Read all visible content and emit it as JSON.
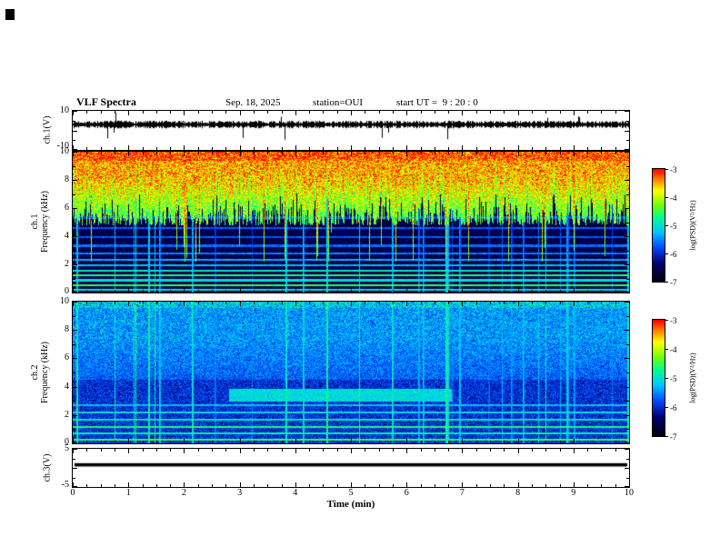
{
  "title": "VLF Spectra",
  "header": {
    "date": "Sep. 18, 2025",
    "station": "station=OUI",
    "start_ut": "start UT =  9 : 20 : 0"
  },
  "axes": {
    "xlabel": "Time (min)",
    "x_ticks": [
      "0",
      "1",
      "2",
      "3",
      "4",
      "5",
      "6",
      "7",
      "8",
      "9",
      "10"
    ],
    "ch1_wave": {
      "ylabel": "ch.1(V)",
      "ymax": "10",
      "ymin": "-10"
    },
    "ch1_spec": {
      "ylabel_line1": "ch.1",
      "ylabel_line2": "Frequency (kHz)",
      "y_ticks": [
        "0",
        "2",
        "4",
        "6",
        "8",
        "10"
      ]
    },
    "ch2_spec": {
      "ylabel_line1": "ch.2",
      "ylabel_line2": "Frequency (kHz)",
      "y_ticks": [
        "0",
        "2",
        "4",
        "6",
        "8",
        "10"
      ]
    },
    "ch3_wave": {
      "ylabel": "ch.3(V)",
      "ymax": "5",
      "ymin": "-5"
    }
  },
  "colorbar": {
    "label": "log(PSD)(V²/Hz)",
    "ticks": [
      "-3",
      "-4",
      "-5",
      "-6",
      "-7"
    ]
  },
  "colormap": [
    [
      0.0,
      "#000010"
    ],
    [
      0.16,
      "#000070"
    ],
    [
      0.3,
      "#0048ff"
    ],
    [
      0.44,
      "#00c8ff"
    ],
    [
      0.57,
      "#00ff90"
    ],
    [
      0.69,
      "#80ff00"
    ],
    [
      0.81,
      "#ffff00"
    ],
    [
      0.91,
      "#ff8000"
    ],
    [
      1.0,
      "#ff0000"
    ]
  ],
  "chart_data": [
    {
      "type": "line",
      "name": "ch1-waveform",
      "ylabel": "ch.1(V)",
      "ylim": [
        -10,
        10
      ],
      "xlim": [
        0,
        10
      ],
      "summary": "Dense black noise trace centred near +3 V with occasional sharp downward spikes reaching about -8 V",
      "mean_level": 3,
      "noise_amplitude": 1.5,
      "spike_probability": 0.012,
      "seed": 7
    },
    {
      "type": "heatmap",
      "name": "ch1-spectrogram",
      "ylabel": "ch.1 Frequency (kHz)",
      "ylim": [
        0,
        10
      ],
      "xlim": [
        0,
        10
      ],
      "zlabel": "log(PSD)(V²/Hz)",
      "zlim": [
        -7,
        -3
      ],
      "summary": "Broadband green/yellow noise above ~5 kHz with spiky lower edge; dark blue/black background 2-6 kHz crossed by bright vertical streaks; dense cyan/green horizontal harmonic lines below ~2 kHz",
      "cut_base_khz": 4.8,
      "cut_var_khz": 2.4,
      "deep_column_probability": 0.06,
      "harmonic_lines": [
        [
          0.25,
          -5.2
        ],
        [
          0.55,
          -4.8
        ],
        [
          0.9,
          -5.3
        ],
        [
          1.25,
          -4.9
        ],
        [
          1.6,
          -5.2
        ],
        [
          1.95,
          -5.5
        ],
        [
          2.35,
          -5.6
        ],
        [
          2.8,
          -5.8
        ],
        [
          3.35,
          -5.9
        ],
        [
          3.95,
          -6
        ],
        [
          4.6,
          -6
        ],
        [
          5.35,
          -6.1
        ]
      ],
      "vertical_streaks": {
        "probability": 0.05,
        "seed": 99
      },
      "seed": 11
    },
    {
      "type": "heatmap",
      "name": "ch2-spectrogram",
      "ylabel": "ch.2 Frequency (kHz)",
      "ylim": [
        0,
        10
      ],
      "xlim": [
        0,
        10
      ],
      "zlabel": "log(PSD)(V²/Hz)",
      "zlim": [
        -7,
        -3
      ],
      "summary": "Mottled blue/cyan background, brighter above ~4.5 kHz; frequent bright vertical streaks; cyan-green horizontal band 3-3.9 kHz from ~2.8 to ~6.8 min; green harmonic lines below ~2.7 kHz",
      "band": {
        "f_low": 3.0,
        "f_high": 3.9,
        "t_start": 2.8,
        "t_end": 6.8
      },
      "harmonic_lines": [
        [
          0.3,
          -4.8
        ],
        [
          0.75,
          -5.1
        ],
        [
          1.2,
          -4.9
        ],
        [
          1.7,
          -5.2
        ],
        [
          2.2,
          -5.3
        ],
        [
          2.7,
          -5.5
        ]
      ],
      "vertical_streaks": {
        "probability": 0.05,
        "seed": 99
      },
      "seed": 23
    },
    {
      "type": "line",
      "name": "ch3-waveform",
      "ylabel": "ch.3(V)",
      "ylim": [
        -5,
        5
      ],
      "xlim": [
        0,
        10
      ],
      "summary": "Flat thick black line at about +0.8 V across the entire 10 minutes",
      "mean_level": 0.8,
      "seed": 3
    }
  ]
}
